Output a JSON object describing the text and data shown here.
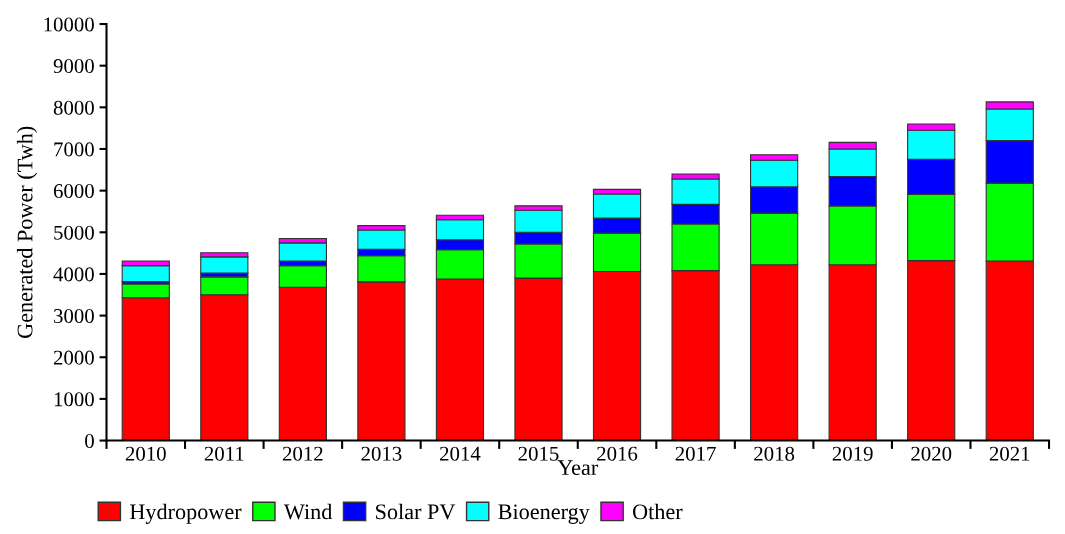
{
  "chart_data": {
    "type": "bar",
    "stacked": true,
    "xlabel": "Year",
    "ylabel": "Generated Power (Twh)",
    "categories": [
      "2010",
      "2011",
      "2012",
      "2013",
      "2014",
      "2015",
      "2016",
      "2017",
      "2018",
      "2019",
      "2020",
      "2021"
    ],
    "series": [
      {
        "name": "Hydropower",
        "color": "#ff0000",
        "values": [
          3430,
          3500,
          3680,
          3810,
          3880,
          3900,
          4060,
          4080,
          4220,
          4220,
          4320,
          4310
        ]
      },
      {
        "name": "Wind",
        "color": "#00ff00",
        "values": [
          330,
          430,
          520,
          630,
          700,
          820,
          920,
          1120,
          1240,
          1410,
          1590,
          1870
        ]
      },
      {
        "name": "Solar PV",
        "color": "#0000ff",
        "values": [
          55,
          90,
          110,
          150,
          240,
          280,
          360,
          470,
          630,
          710,
          840,
          1020
        ]
      },
      {
        "name": "Bioenergy",
        "color": "#00ffff",
        "values": [
          385,
          390,
          435,
          465,
          480,
          530,
          580,
          610,
          640,
          660,
          700,
          760
        ]
      },
      {
        "name": "Other",
        "color": "#ff00ff",
        "values": [
          110,
          100,
          105,
          105,
          110,
          105,
          110,
          120,
          130,
          160,
          150,
          170
        ]
      }
    ],
    "ylim": [
      0,
      10000
    ],
    "yticks": [
      0,
      1000,
      2000,
      3000,
      4000,
      5000,
      6000,
      7000,
      8000,
      9000,
      10000
    ],
    "grid": false,
    "legend": "bottom left"
  }
}
